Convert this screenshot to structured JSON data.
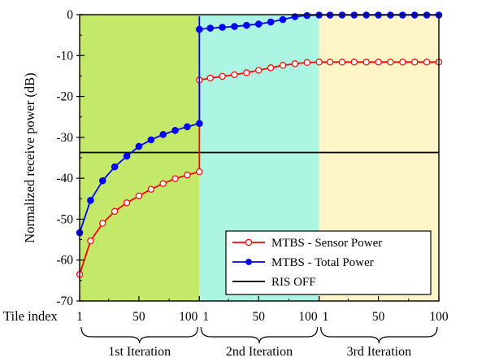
{
  "chart_data": {
    "type": "line",
    "ylabel": "Normalized receive power (dB)",
    "xlabel": "Tile index",
    "ylim": [
      -70,
      0
    ],
    "y_ticks": [
      0,
      -10,
      -20,
      -30,
      -40,
      -50,
      -60,
      -70
    ],
    "grid": false,
    "legend_position": "bottom-right",
    "segments": [
      {
        "label": "1st Iteration",
        "tile_range": [
          1,
          100
        ],
        "tick_labels": [
          "1",
          "50",
          "100"
        ],
        "color": "#c3e86a"
      },
      {
        "label": "2nd Iteration",
        "tile_range": [
          1,
          100
        ],
        "tick_labels": [
          "1",
          "50",
          "100"
        ],
        "color": "#adf5e3"
      },
      {
        "label": "3rd Iteration",
        "tile_range": [
          1,
          100
        ],
        "tick_labels": [
          "1",
          "50",
          "100"
        ],
        "color": "#fdf4c8"
      }
    ],
    "series": [
      {
        "name": "MTBS - Sensor Power",
        "color": "#ff0000",
        "marker": "open-circle",
        "x": [
          1,
          10,
          20,
          30,
          40,
          50,
          60,
          70,
          80,
          90,
          100,
          101,
          110,
          120,
          130,
          140,
          150,
          160,
          170,
          180,
          190,
          200,
          210,
          220,
          230,
          240,
          250,
          260,
          270,
          280,
          290,
          300
        ],
        "values": [
          -63.5,
          -55.3,
          -51.0,
          -48.1,
          -46.0,
          -44.3,
          -42.7,
          -41.3,
          -40.1,
          -39.2,
          -38.4,
          -16.0,
          -15.5,
          -15.1,
          -14.7,
          -14.2,
          -13.6,
          -13.0,
          -12.4,
          -12.0,
          -11.7,
          -11.6,
          -11.6,
          -11.6,
          -11.6,
          -11.6,
          -11.6,
          -11.6,
          -11.6,
          -11.6,
          -11.6,
          -11.6
        ],
        "line_only": [
          {
            "x": 100,
            "y": -37.6
          },
          {
            "x": 100.5,
            "y": -16.0
          }
        ]
      },
      {
        "name": "MTBS - Total Power",
        "color": "#0000ff",
        "marker": "filled-circle",
        "x": [
          1,
          10,
          20,
          30,
          40,
          50,
          60,
          70,
          80,
          90,
          100,
          101,
          110,
          120,
          130,
          140,
          150,
          160,
          170,
          180,
          190,
          200,
          210,
          220,
          230,
          240,
          250,
          260,
          270,
          280,
          290,
          300
        ],
        "values": [
          -53.3,
          -45.4,
          -40.6,
          -37.2,
          -34.6,
          -32.2,
          -30.6,
          -29.3,
          -28.3,
          -27.4,
          -26.6,
          -3.6,
          -3.3,
          -3.1,
          -2.9,
          -2.6,
          -2.3,
          -1.8,
          -1.2,
          -0.5,
          -0.2,
          -0.1,
          -0.1,
          -0.1,
          -0.1,
          -0.1,
          -0.1,
          -0.1,
          -0.1,
          -0.1,
          -0.1,
          -0.1
        ],
        "line_only": [
          {
            "x": 100.5,
            "y": -0.5
          }
        ]
      },
      {
        "name": "RIS OFF",
        "color": "#000000",
        "marker": "none",
        "x": [
          1,
          300
        ],
        "values": [
          -33.7,
          -33.7
        ]
      }
    ]
  }
}
